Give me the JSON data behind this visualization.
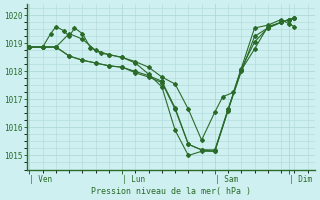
{
  "title": "",
  "xlabel": "Pression niveau de la mer( hPa )",
  "ylabel": "",
  "bg_color": "#cff0f0",
  "grid_color": "#b0d8d8",
  "line_color": "#2a6b2a",
  "ylim": [
    1014.5,
    1020.4
  ],
  "xlim": [
    -0.1,
    10.8
  ],
  "xtick_labels": [
    "| Ven",
    "| Lun",
    "| Sam",
    "| Dim"
  ],
  "xtick_positions": [
    0.0,
    3.5,
    7.0,
    9.8
  ],
  "ytick_vals": [
    1015,
    1016,
    1017,
    1018,
    1019,
    1020
  ],
  "minor_xticks": [
    0.5,
    1.0,
    1.5,
    2.0,
    2.5,
    3.0,
    3.5,
    4.0,
    4.5,
    5.0,
    5.5,
    6.0,
    6.5,
    7.0,
    7.5,
    8.0,
    8.5,
    9.0,
    9.5,
    10.0
  ],
  "series": [
    [
      0.0,
      1018.87,
      0.5,
      1018.87,
      0.8,
      1019.35,
      1.0,
      1019.6,
      1.3,
      1019.45,
      1.5,
      1019.25,
      1.7,
      1019.55,
      2.0,
      1019.35,
      2.3,
      1018.85,
      2.7,
      1018.65,
      3.0,
      1018.6,
      3.5,
      1018.5,
      4.0,
      1018.35,
      4.5,
      1018.15,
      5.0,
      1017.8,
      5.5,
      1017.55,
      6.0,
      1016.65,
      6.5,
      1015.55,
      7.0,
      1016.55,
      7.3,
      1017.1,
      7.7,
      1017.25,
      8.5,
      1019.55,
      9.0,
      1019.65,
      9.5,
      1019.85,
      9.8,
      1019.7,
      10.0,
      1019.6
    ],
    [
      0.0,
      1018.87,
      0.5,
      1018.87,
      1.0,
      1018.87,
      1.5,
      1019.35,
      2.0,
      1019.15,
      2.5,
      1018.75,
      3.0,
      1018.6,
      3.5,
      1018.5,
      4.0,
      1018.3,
      4.5,
      1017.9,
      5.0,
      1017.45,
      5.5,
      1015.9,
      6.0,
      1015.0,
      6.5,
      1015.15,
      7.0,
      1015.15,
      7.5,
      1016.6,
      8.0,
      1018.05,
      8.5,
      1018.8,
      9.0,
      1019.6,
      9.5,
      1019.75,
      9.8,
      1019.85,
      10.0,
      1019.9
    ],
    [
      0.0,
      1018.87,
      0.5,
      1018.87,
      1.0,
      1018.87,
      1.5,
      1018.55,
      2.0,
      1018.4,
      2.5,
      1018.3,
      3.0,
      1018.2,
      3.5,
      1018.15,
      4.0,
      1017.95,
      4.5,
      1017.8,
      5.0,
      1017.6,
      5.5,
      1016.65,
      6.0,
      1015.4,
      6.5,
      1015.2,
      7.0,
      1015.15,
      7.5,
      1016.65,
      8.0,
      1018.1,
      8.5,
      1019.05,
      9.0,
      1019.55,
      9.5,
      1019.75,
      9.8,
      1019.85,
      10.0,
      1019.9
    ],
    [
      0.0,
      1018.87,
      0.5,
      1018.87,
      1.0,
      1018.87,
      1.5,
      1018.55,
      2.0,
      1018.4,
      2.5,
      1018.3,
      3.0,
      1018.2,
      3.5,
      1018.15,
      4.0,
      1018.0,
      4.5,
      1017.85,
      5.0,
      1017.65,
      5.5,
      1016.7,
      6.0,
      1015.4,
      6.5,
      1015.2,
      7.0,
      1015.2,
      7.5,
      1016.65,
      8.0,
      1018.0,
      8.5,
      1019.25,
      9.0,
      1019.55,
      9.5,
      1019.75,
      9.8,
      1019.85,
      10.0,
      1019.9
    ]
  ]
}
